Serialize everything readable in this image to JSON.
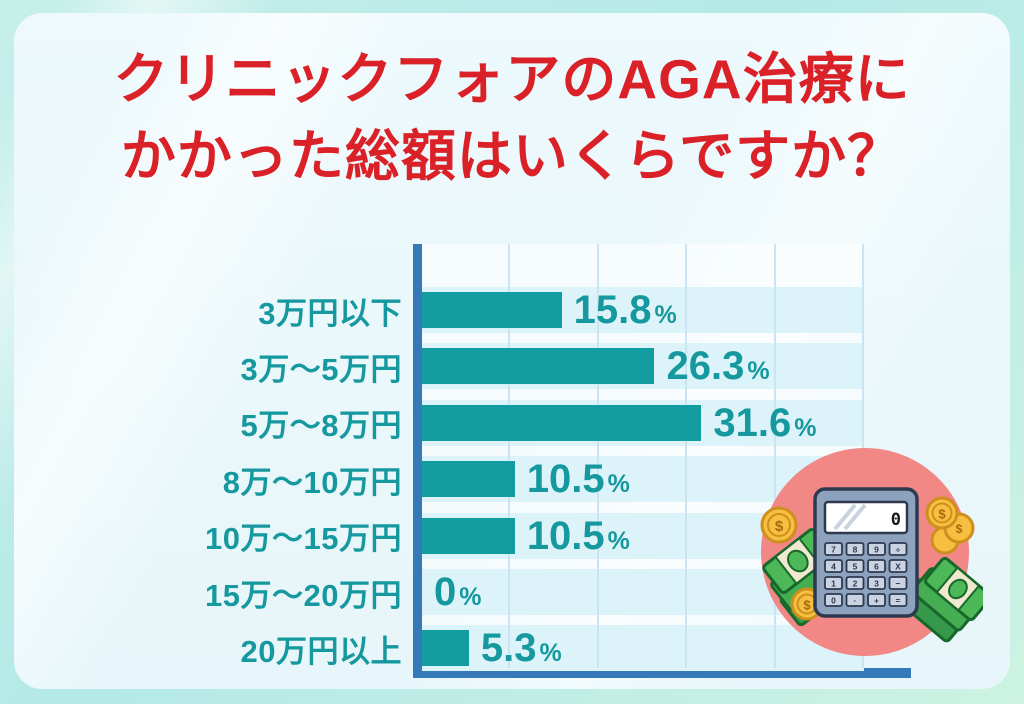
{
  "title": {
    "line1": "クリニックフォアのAGA治療に",
    "line2": "かかった総額はいくらですか？"
  },
  "chart_data": {
    "type": "bar",
    "orientation": "horizontal",
    "title": "クリニックフォアのAGA治療にかかった総額はいくらですか？",
    "categories": [
      "3万円以下",
      "3万〜5万円",
      "5万〜8万円",
      "8万〜10万円",
      "10万〜15万円",
      "15万〜20万円",
      "20万円以上"
    ],
    "values": [
      15.8,
      26.3,
      31.6,
      10.5,
      10.5,
      0,
      5.3
    ],
    "value_labels": [
      "15.8",
      "26.3",
      "31.6",
      "10.5",
      "10.5",
      "0",
      "5.3"
    ],
    "unit": "%",
    "xlabel": "",
    "ylabel": "",
    "xlim": [
      0,
      50
    ],
    "gridline_interval_pct": 10,
    "grid": "vertical",
    "legend": "none",
    "colors": {
      "bar": "#129da0",
      "axis": "#3579ba",
      "text": "#16989f",
      "row_band": "#dcf3f9",
      "gridline": "#cbe4f2",
      "title": "#da2128",
      "illustration_circle": "#f28886"
    }
  },
  "illustration": {
    "name": "calculator-and-money",
    "display_value": "0",
    "buttons": [
      "7",
      "8",
      "9",
      "÷",
      "4",
      "5",
      "6",
      "X",
      "1",
      "2",
      "3",
      "−",
      "0",
      "·",
      "+",
      "="
    ]
  }
}
